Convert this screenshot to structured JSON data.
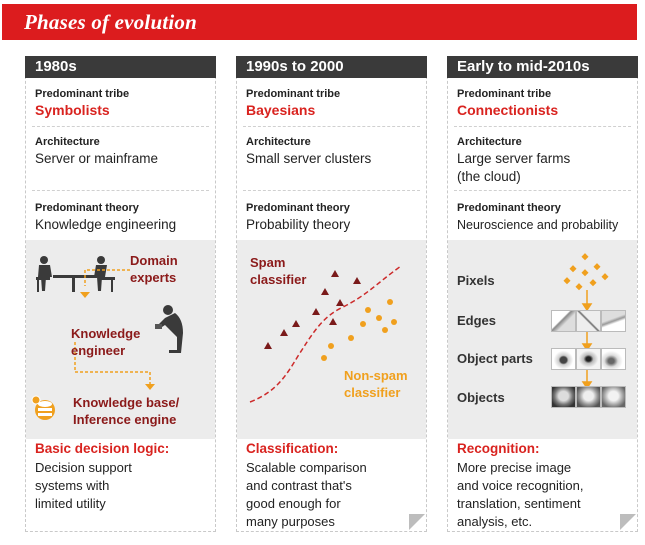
{
  "banner": {
    "title": "Phases of evolution"
  },
  "columns": [
    {
      "header": "1980s",
      "tribe_label": "Predominant tribe",
      "tribe": "Symbolists",
      "arch_label": "Architecture",
      "arch": "Server or mainframe",
      "theory_label": "Predominant theory",
      "theory": "Knowledge engineering",
      "logic_title": "Basic decision logic:",
      "logic_text": [
        "Decision support",
        "systems with",
        "limited utility"
      ]
    },
    {
      "header": "1990s to 2000",
      "tribe_label": "Predominant tribe",
      "tribe": "Bayesians",
      "arch_label": "Architecture",
      "arch": "Small server clusters",
      "theory_label": "Predominant theory",
      "theory": "Probability theory",
      "logic_title": "Classification:",
      "logic_text": [
        "Scalable comparison",
        "and contrast that's",
        "good enough for",
        "many purposes"
      ]
    },
    {
      "header": "Early to mid-2010s",
      "tribe_label": "Predominant tribe",
      "tribe": "Connectionists",
      "arch_label": "Architecture",
      "arch_lines": [
        "Large server farms",
        "(the cloud)"
      ],
      "theory_label": "Predominant theory",
      "theory": "Neuroscience and probability",
      "logic_title": "Recognition:",
      "logic_text": [
        "More precise image",
        "and voice recognition,",
        "translation, sentiment",
        "analysis, etc."
      ]
    }
  ],
  "diagram1": {
    "domain_experts": [
      "Domain",
      "experts"
    ],
    "knowledge_engineer": [
      "Knowledge",
      "engineer"
    ],
    "knowledge_base": [
      "Knowledge base/",
      "Inference engine"
    ]
  },
  "diagram2": {
    "spam": [
      "Spam",
      "classifier"
    ],
    "nonspam": [
      "Non-spam",
      "classifier"
    ]
  },
  "diagram3": {
    "stages": [
      "Pixels",
      "Edges",
      "Object parts",
      "Objects"
    ]
  },
  "colors": {
    "banner": "#dc1c1e",
    "header": "#3a3a3a",
    "accent_red": "#d9231f",
    "dark_red": "#8b1a1a",
    "orange": "#f0a01e"
  }
}
